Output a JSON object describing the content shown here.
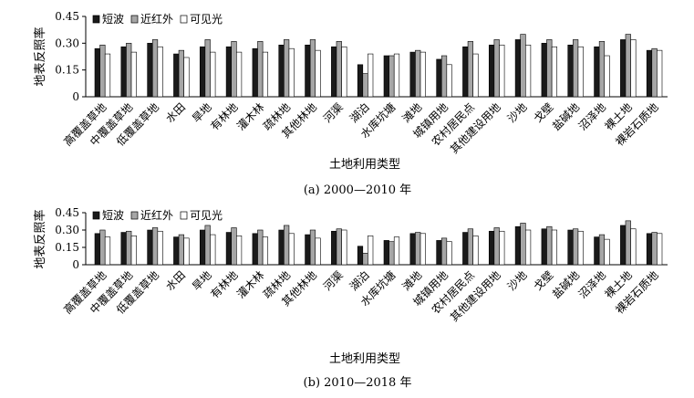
{
  "chart_data": [
    {
      "type": "bar",
      "caption": "(a) 2000—2010 年",
      "xlabel": "土地利用类型",
      "ylabel": "地表反照率",
      "ylim": [
        0,
        0.45
      ],
      "yticks": [
        "0",
        "0.15",
        "0.30",
        "0.45"
      ],
      "legend_position": "top-left",
      "categories": [
        "高覆盖草地",
        "中覆盖草地",
        "低覆盖草地",
        "水田",
        "旱地",
        "有林地",
        "灌木林",
        "疏林地",
        "其他林地",
        "河渠",
        "湖泊",
        "水库坑塘",
        "滩地",
        "城镇用地",
        "农村居民点",
        "其他建设用地",
        "沙地",
        "戈壁",
        "盐碱地",
        "沼泽地",
        "裸土地",
        "裸岩石质地"
      ],
      "series": [
        {
          "name": "短波",
          "values": [
            0.27,
            0.28,
            0.3,
            0.24,
            0.28,
            0.28,
            0.27,
            0.29,
            0.29,
            0.28,
            0.18,
            0.23,
            0.25,
            0.21,
            0.28,
            0.29,
            0.32,
            0.3,
            0.29,
            0.28,
            0.32,
            0.26
          ]
        },
        {
          "name": "近红外",
          "values": [
            0.29,
            0.3,
            0.32,
            0.26,
            0.32,
            0.31,
            0.31,
            0.32,
            0.32,
            0.31,
            0.13,
            0.23,
            0.26,
            0.23,
            0.31,
            0.32,
            0.35,
            0.32,
            0.32,
            0.31,
            0.35,
            0.27
          ]
        },
        {
          "name": "可见光",
          "values": [
            0.24,
            0.25,
            0.28,
            0.22,
            0.25,
            0.25,
            0.25,
            0.27,
            0.26,
            0.28,
            0.24,
            0.24,
            0.25,
            0.18,
            0.24,
            0.29,
            0.29,
            0.28,
            0.28,
            0.23,
            0.32,
            0.26
          ]
        }
      ]
    },
    {
      "type": "bar",
      "caption": "(b) 2010—2018 年",
      "xlabel": "土地利用类型",
      "ylabel": "地表反照率",
      "ylim": [
        0,
        0.45
      ],
      "yticks": [
        "0",
        "0.15",
        "0.30",
        "0.45"
      ],
      "legend_position": "top-left",
      "categories": [
        "高覆盖草地",
        "中覆盖草地",
        "低覆盖草地",
        "水田",
        "旱地",
        "有林地",
        "灌木林",
        "疏林地",
        "其他林地",
        "河渠",
        "湖泊",
        "水库坑塘",
        "滩地",
        "城镇用地",
        "农村居民点",
        "其他建设用地",
        "沙地",
        "戈壁",
        "盐碱地",
        "沼泽地",
        "裸土地",
        "裸岩石质地"
      ],
      "series": [
        {
          "name": "短波",
          "values": [
            0.27,
            0.28,
            0.3,
            0.24,
            0.3,
            0.28,
            0.27,
            0.3,
            0.26,
            0.29,
            0.16,
            0.21,
            0.27,
            0.21,
            0.28,
            0.29,
            0.33,
            0.31,
            0.3,
            0.24,
            0.34,
            0.27
          ]
        },
        {
          "name": "近红外",
          "values": [
            0.3,
            0.29,
            0.32,
            0.26,
            0.34,
            0.32,
            0.3,
            0.34,
            0.3,
            0.31,
            0.1,
            0.2,
            0.28,
            0.23,
            0.31,
            0.32,
            0.36,
            0.33,
            0.31,
            0.26,
            0.38,
            0.28
          ]
        },
        {
          "name": "可见光",
          "values": [
            0.24,
            0.25,
            0.29,
            0.23,
            0.26,
            0.25,
            0.24,
            0.27,
            0.23,
            0.3,
            0.25,
            0.24,
            0.27,
            0.2,
            0.25,
            0.29,
            0.3,
            0.3,
            0.29,
            0.22,
            0.31,
            0.27
          ]
        }
      ]
    }
  ],
  "colors": {
    "短波": "#1a1a1a",
    "近红外": "#a6a6a6",
    "可见光": "#ffffff",
    "outline": "#000000"
  }
}
